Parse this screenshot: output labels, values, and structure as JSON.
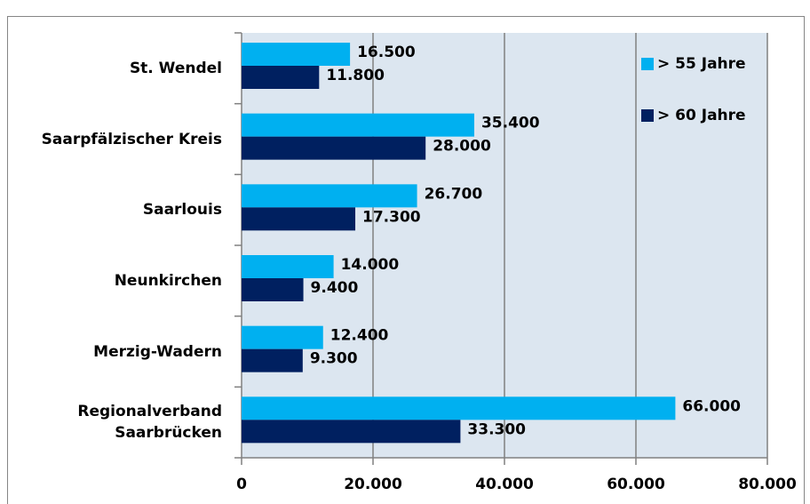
{
  "chart_data": {
    "type": "hbar",
    "categories": [
      "St. Wendel",
      "Saarpfälzischer Kreis",
      "Saarlouis",
      "Neunkirchen",
      "Merzig-Wadern",
      "Regionalverband\nSaarbrücken"
    ],
    "series": [
      {
        "name": "> 55 Jahre",
        "color": "#00b0f0",
        "values": [
          16500,
          35400,
          26700,
          14000,
          12400,
          66000
        ],
        "value_labels": [
          "16.500",
          "35.400",
          "26.700",
          "14.000",
          "12.400",
          "66.000"
        ]
      },
      {
        "name": "> 60 Jahre",
        "color": "#002060",
        "values": [
          11800,
          28000,
          17300,
          9400,
          9300,
          33300
        ],
        "value_labels": [
          "11.800",
          "28.000",
          "17.300",
          "9.400",
          "9.300",
          "33.300"
        ]
      }
    ],
    "xlim": [
      0,
      80000
    ],
    "xticks": [
      0,
      {
        "value": 20000,
        "label": "20.000"
      },
      {
        "value": 40000,
        "label": "40.000"
      },
      {
        "value": 60000,
        "label": "60.000"
      },
      {
        "value": 80000,
        "label": "80.000"
      }
    ],
    "grid": true,
    "legend": "top-right"
  }
}
